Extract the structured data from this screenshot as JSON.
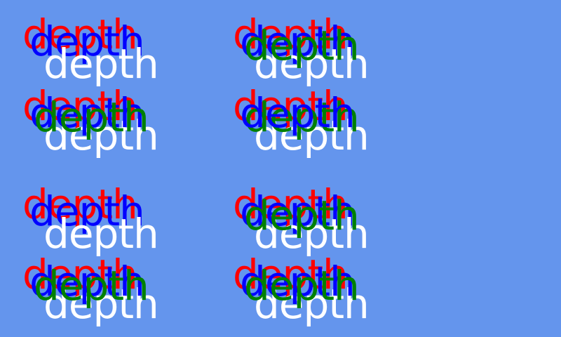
{
  "background": "#6495ED",
  "colors": {
    "red": "#FF0000",
    "blue": "#0000FF",
    "green": "#008000",
    "white": "#FFFFFF"
  },
  "groups": [
    {
      "word": "depth",
      "order": [
        "red",
        "blue",
        "white"
      ]
    },
    {
      "word": "depth",
      "order": [
        "red",
        "blue",
        "white",
        "green"
      ]
    },
    {
      "word": "depth",
      "order": [
        "red",
        "white",
        "blue",
        "green"
      ]
    },
    {
      "word": "depth",
      "order": [
        "red",
        "white",
        "green",
        "blue"
      ]
    },
    {
      "word": "depth",
      "order": [
        "red",
        "blue",
        "white"
      ]
    },
    {
      "word": "depth",
      "order": [
        "red",
        "blue",
        "white",
        "green"
      ]
    },
    {
      "word": "depth",
      "order": [
        "red",
        "white",
        "blue",
        "green"
      ]
    },
    {
      "word": "depth",
      "order": [
        "red",
        "white",
        "blue",
        "green"
      ]
    }
  ]
}
